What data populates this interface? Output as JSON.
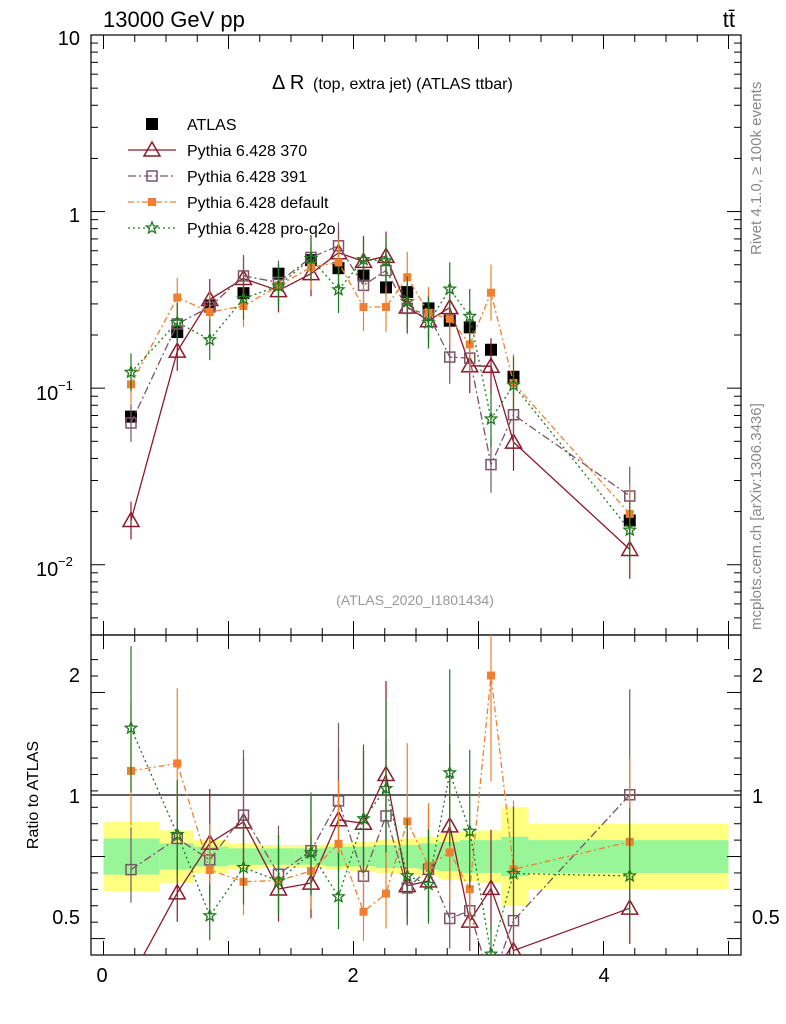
{
  "header": {
    "energy_label": "13000 GeV pp",
    "process_label": "tt̄"
  },
  "side_labels": {
    "rivet": "Rivet 4.1.0, ≥ 100k events",
    "source": "mcplots.cern.ch [arXiv:1306.3436]"
  },
  "chart_data": {
    "type": "scatter",
    "title": "Δ R (top, extra jet) (ATLAS ttbar)",
    "title_main": "Δ R",
    "title_sub": "(top, extra jet) (ATLAS ttbar)",
    "analysis_tag": "(ATLAS_2020_I1801434)",
    "xlabel": "",
    "ylabel_ratio": "Ratio to ATLAS",
    "xlim": [
      -0.1,
      5.1
    ],
    "ylim": [
      0.004,
      10
    ],
    "ylim_ratio": [
      0.4,
      2.35
    ],
    "y_scale": "log",
    "x_ticks": [
      0,
      2,
      4
    ],
    "y_tick_labels": [
      "10",
      "1",
      "10^-1",
      "10^-2"
    ],
    "ratio_tick_labels": [
      "2",
      "1",
      "0.5"
    ],
    "x": [
      0.22,
      0.59,
      0.85,
      1.12,
      1.4,
      1.66,
      1.88,
      2.08,
      2.26,
      2.43,
      2.6,
      2.77,
      2.93,
      3.1,
      3.28,
      4.21
    ],
    "bin_edges": [
      0,
      0.45,
      0.72,
      1.0,
      1.25,
      1.53,
      1.78,
      1.98,
      2.18,
      2.35,
      2.52,
      2.68,
      2.85,
      3.0,
      3.18,
      3.4,
      5.0
    ],
    "band_inner": [
      0.11,
      0.08,
      0.06,
      0.05,
      0.05,
      0.05,
      0.06,
      0.06,
      0.07,
      0.07,
      0.08,
      0.09,
      0.1,
      0.1,
      0.12,
      0.1
    ],
    "band_outer": [
      0.21,
      0.16,
      0.1,
      0.08,
      0.07,
      0.07,
      0.08,
      0.09,
      0.1,
      0.11,
      0.12,
      0.14,
      0.15,
      0.16,
      0.3,
      0.2
    ],
    "series": [
      {
        "name": "ATLAS",
        "style": "atlas",
        "color": "#000000",
        "values": [
          0.069,
          0.208,
          0.294,
          0.345,
          0.445,
          0.531,
          0.478,
          0.434,
          0.372,
          0.35,
          0.283,
          0.241,
          0.221,
          0.165,
          0.116,
          0.0178
        ]
      },
      {
        "name": "Pythia 6.428 370",
        "style": "triangle",
        "color": "#8b1a2b",
        "values": [
          0.0178,
          0.162,
          0.318,
          0.418,
          0.357,
          0.445,
          0.585,
          0.522,
          0.558,
          0.288,
          0.241,
          0.286,
          0.134,
          0.133,
          0.0495,
          0.0122
        ]
      },
      {
        "name": "Pythia 6.428 391",
        "style": "square",
        "color": "#7a5566",
        "values": [
          0.0635,
          0.231,
          0.288,
          0.432,
          0.397,
          0.55,
          0.64,
          0.382,
          0.464,
          0.283,
          0.261,
          0.15,
          0.148,
          0.0369,
          0.0707,
          0.0245
        ]
      },
      {
        "name": "Pythia 6.428 default",
        "style": "filled-square",
        "color": "#f08030",
        "values": [
          0.105,
          0.326,
          0.27,
          0.292,
          0.38,
          0.484,
          0.515,
          0.288,
          0.288,
          0.425,
          0.267,
          0.247,
          0.177,
          0.347,
          0.107,
          0.0194
        ]
      },
      {
        "name": "Pythia 6.428 pro-q2o",
        "style": "star",
        "color": "#1f7a1f",
        "values": [
          0.123,
          0.236,
          0.188,
          0.322,
          0.379,
          0.543,
          0.361,
          0.534,
          0.526,
          0.309,
          0.235,
          0.364,
          0.255,
          0.0669,
          0.104,
          0.0157
        ]
      }
    ]
  }
}
